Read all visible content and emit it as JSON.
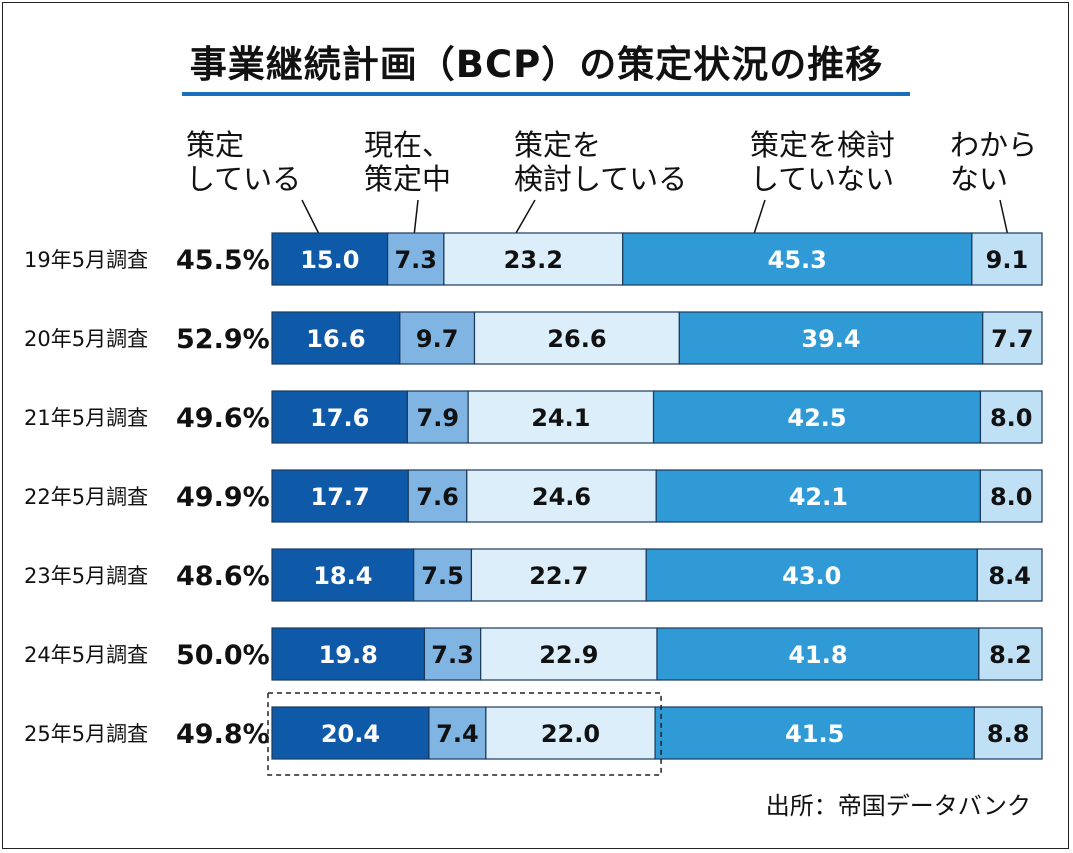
{
  "title": "事業継続計画（BCP）の策定状況の推移",
  "source": "出所：帝国データバンク",
  "headers": [
    {
      "lines": [
        "策定",
        "している"
      ]
    },
    {
      "lines": [
        "現在、",
        "策定中"
      ]
    },
    {
      "lines": [
        "策定を",
        "検討している"
      ]
    },
    {
      "lines": [
        "策定を検討",
        "していない"
      ]
    },
    {
      "lines": [
        "わから",
        "ない"
      ]
    }
  ],
  "colors": {
    "seg0": "#0f5aa8",
    "seg1": "#7fb4e3",
    "seg2": "#dbeefa",
    "seg3": "#2f9ad6",
    "seg4": "#bfe0f5",
    "border": "#1c3a5c",
    "light_text": "#ffffff",
    "dark_text": "#111111"
  },
  "chart_data": {
    "type": "bar",
    "orientation": "horizontal",
    "stacked": true,
    "unit": "%",
    "title": "事業継続計画（BCP）の策定状況の推移",
    "categories": [
      "19年5月調査",
      "20年5月調査",
      "21年5月調査",
      "22年5月調査",
      "23年5月調査",
      "24年5月調査",
      "25年5月調査"
    ],
    "share_labels": [
      "45.5%",
      "52.9%",
      "49.6%",
      "49.9%",
      "48.6%",
      "50.0%",
      "49.8%"
    ],
    "series": [
      {
        "name": "策定している",
        "values": [
          "15.0",
          "16.6",
          "17.6",
          "17.7",
          "18.4",
          "19.8",
          "20.4"
        ]
      },
      {
        "name": "現在、策定中",
        "values": [
          "7.3",
          "9.7",
          "7.9",
          "7.6",
          "7.5",
          "7.3",
          "7.4"
        ]
      },
      {
        "name": "策定を検討している",
        "values": [
          "23.2",
          "26.6",
          "24.1",
          "24.6",
          "22.7",
          "22.9",
          "22.0"
        ]
      },
      {
        "name": "策定を検討していない",
        "values": [
          "45.3",
          "39.4",
          "42.5",
          "42.1",
          "43.0",
          "41.8",
          "41.5"
        ]
      },
      {
        "name": "わからない",
        "values": [
          "9.1",
          "7.7",
          "8.0",
          "8.0",
          "8.4",
          "8.2",
          "8.8"
        ]
      }
    ],
    "highlight_row": 6,
    "highlight_segments": 3
  }
}
